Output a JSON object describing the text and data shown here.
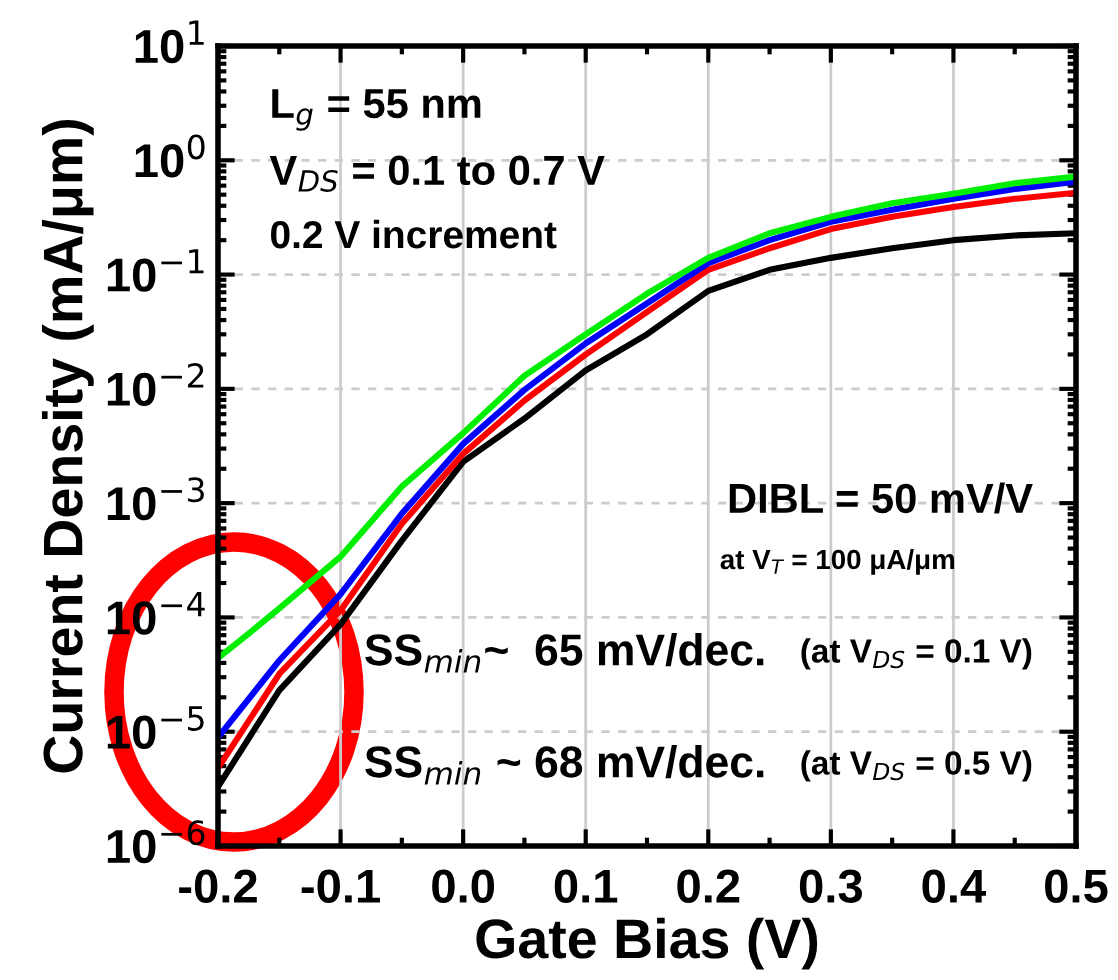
{
  "chart_data": {
    "type": "line",
    "xlabel": "Gate Bias (V)",
    "ylabel": "Current Density (mA/μm)",
    "x": [
      -0.2,
      -0.15,
      -0.1,
      -0.05,
      0.0,
      0.05,
      0.1,
      0.15,
      0.2,
      0.25,
      0.3,
      0.35,
      0.4,
      0.45,
      0.5
    ],
    "series": [
      {
        "color": "#000000",
        "values": [
          3.3e-06,
          2.3e-05,
          8.7e-05,
          0.00047,
          0.0023,
          0.0055,
          0.0145,
          0.03,
          0.072,
          0.11,
          0.14,
          0.17,
          0.2,
          0.22,
          0.23
        ]
      },
      {
        "color": "#ff0000",
        "values": [
          4.8e-06,
          3.2e-05,
          0.000115,
          0.00066,
          0.0027,
          0.0079,
          0.02,
          0.047,
          0.11,
          0.17,
          0.25,
          0.32,
          0.39,
          0.46,
          0.52
        ]
      },
      {
        "color": "#0000ff",
        "values": [
          8.9e-06,
          4.2e-05,
          0.00016,
          0.00081,
          0.0033,
          0.0098,
          0.025,
          0.056,
          0.126,
          0.2,
          0.29,
          0.37,
          0.46,
          0.56,
          0.65
        ]
      },
      {
        "color": "#00ee00",
        "x": [
          -0.2,
          -0.175,
          -0.15,
          -0.1,
          -0.05,
          0.0,
          0.05,
          0.1,
          0.15,
          0.2,
          0.25,
          0.3,
          0.35,
          0.4,
          0.45,
          0.5
        ],
        "values": [
          4.4e-05,
          7.2e-05,
          0.00012,
          0.00034,
          0.0014,
          0.0041,
          0.013,
          0.03,
          0.068,
          0.14,
          0.23,
          0.32,
          0.42,
          0.51,
          0.63,
          0.72
        ]
      }
    ],
    "log": "y",
    "xlim": [
      -0.2,
      0.5
    ],
    "xticks": [
      {
        "value": -0.2,
        "label": "-0.2"
      },
      {
        "value": -0.1,
        "label": "-0.1"
      },
      {
        "value": 0.0,
        "label": "0.0"
      },
      0.1,
      0.2,
      0.3,
      0.4,
      0.5
    ],
    "ylim": [
      1e-06,
      10
    ],
    "yticks": [
      {
        "value": 1e-06,
        "label": "10$^{−6}$"
      },
      {
        "value": 1e-05,
        "label": "10$^{−5}$"
      },
      {
        "value": 0.0001,
        "label": "10$^{−4}$"
      },
      {
        "value": 0.001,
        "label": "10$^{−3}$"
      },
      {
        "value": 0.01,
        "label": "10$^{−2}$"
      },
      {
        "value": 0.1,
        "label": "10$^{−1}$"
      },
      {
        "value": 1,
        "label": "10$^{0}$"
      },
      {
        "value": 10,
        "label": "10$^{1}$"
      }
    ],
    "grid": true,
    "line_style": "solid",
    "marker": "none",
    "annotations": [
      "L$_{g}$ = 55 nm",
      "V$_{DS}$ = 0.1 to 0.7 V",
      "0.2 V increment",
      "DIBL = 50 mV/V",
      "at V$_{T}$ = 100 μA/μm",
      "SS$_{min}$~  65 mV/dec.",
      "(at V$_{DS}$ = 0.1 V)",
      "SS$_{min}$ ~ 68 mV/dec.",
      "(at V$_{DS}$ = 0.5 V)"
    ]
  }
}
